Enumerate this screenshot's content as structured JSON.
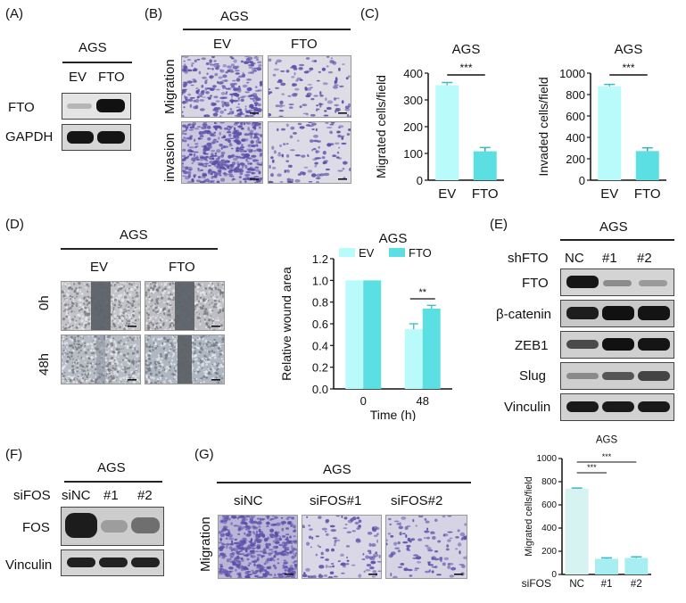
{
  "panelA": {
    "label": "(A)",
    "cell": "AGS",
    "lanes": [
      "EV",
      "FTO"
    ],
    "rows": [
      "FTO",
      "GAPDH"
    ]
  },
  "panelB": {
    "label": "(B)",
    "cell": "AGS",
    "cols": [
      "EV",
      "FTO"
    ],
    "rows": [
      "Migration",
      "invasion"
    ]
  },
  "panelC": {
    "label": "(C)"
  },
  "panelD": {
    "label": "(D)",
    "cell": "AGS",
    "cols": [
      "EV",
      "FTO"
    ],
    "rows": [
      "0h",
      "48h"
    ]
  },
  "panelE": {
    "label": "(E)",
    "cell": "AGS",
    "lane_title": "shFTO",
    "lanes": [
      "NC",
      "#1",
      "#2"
    ],
    "rows": [
      "FTO",
      "β-catenin",
      "ZEB1",
      "Slug",
      "Vinculin"
    ]
  },
  "panelF": {
    "label": "(F)",
    "cell": "AGS",
    "lane_title": "siFOS",
    "lanes": [
      "siNC",
      "#1",
      "#2"
    ],
    "rows": [
      "FOS",
      "Vinculin"
    ]
  },
  "panelG": {
    "label": "(G)",
    "cell": "AGS",
    "cols": [
      "siNC",
      "siFOS#1",
      "siFOS#2"
    ],
    "rows": [
      "Migration"
    ]
  },
  "colors": {
    "ev_fill": "#b8fbfa",
    "fto_fill": "#5bdfe3",
    "sinc_fill": "#d6f3f1",
    "sifos_fill": "#a7eef2",
    "stain": "#5a4fa8"
  },
  "chart_data": [
    {
      "type": "bar",
      "title": "AGS",
      "ylabel": "Migrated cells/field",
      "categories": [
        "EV",
        "FTO"
      ],
      "values": [
        355,
        108
      ],
      "errors": [
        10,
        14
      ],
      "ylim": [
        0,
        400
      ],
      "yticks": [
        0,
        100,
        200,
        300,
        400
      ],
      "significance": [
        "***"
      ],
      "colors": [
        "#b8fbfa",
        "#5bdfe3"
      ]
    },
    {
      "type": "bar",
      "title": "AGS",
      "ylabel": "Invaded cells/field",
      "categories": [
        "EV",
        "FTO"
      ],
      "values": [
        875,
        272
      ],
      "errors": [
        20,
        30
      ],
      "ylim": [
        0,
        1000
      ],
      "yticks": [
        0,
        200,
        400,
        600,
        800,
        1000
      ],
      "significance": [
        "***"
      ],
      "colors": [
        "#b8fbfa",
        "#5bdfe3"
      ]
    },
    {
      "type": "bar",
      "title": "AGS",
      "ylabel": "Relative wound area",
      "xlabel": "Time (h)",
      "categories": [
        "0",
        "48"
      ],
      "legend_position": "top",
      "series": [
        {
          "name": "EV",
          "values": [
            1.0,
            0.55
          ],
          "errors": [
            0,
            0.05
          ]
        },
        {
          "name": "FTO",
          "values": [
            1.0,
            0.74
          ],
          "errors": [
            0,
            0.03
          ]
        }
      ],
      "ylim": [
        0,
        1.2
      ],
      "yticks": [
        "0.0",
        "0.2",
        "0.4",
        "0.6",
        "0.8",
        "1.0",
        "1.2"
      ],
      "significance": [
        "**"
      ],
      "colors": [
        "#b8fbfa",
        "#5bdfe3"
      ]
    },
    {
      "type": "bar",
      "title": "AGS",
      "ylabel": "Migrated cells/field",
      "xlabel_prefix": "siFOS",
      "categories": [
        "NC",
        "#1",
        "#2"
      ],
      "values": [
        740,
        135,
        142
      ],
      "errors": [
        5,
        8,
        10
      ],
      "ylim": [
        0,
        1000
      ],
      "yticks": [
        0,
        200,
        400,
        600,
        800,
        1000
      ],
      "significance": [
        "***",
        "***"
      ],
      "colors": [
        "#d6f3f1",
        "#a7eef2",
        "#a7eef2"
      ]
    }
  ]
}
